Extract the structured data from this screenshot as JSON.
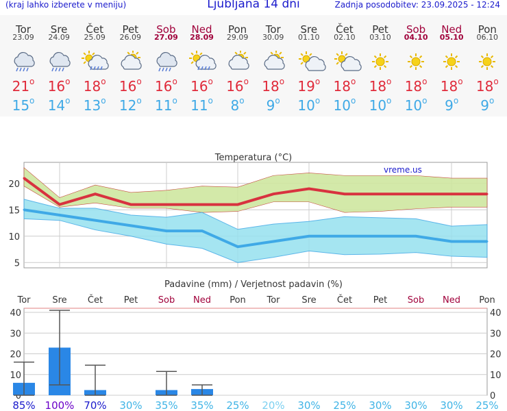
{
  "header": {
    "left": "(kraj lahko izberete v meniju)",
    "title": "Ljubljana 14 dni",
    "right": "Zadnja posodobitev: 23.09.2025 - 12:24"
  },
  "colors": {
    "max_line": "#d8323f",
    "min_line": "#3fa9e6",
    "max_band": "#cfe7a0",
    "min_band": "#96e1ef",
    "bar": "#2a87e6",
    "weekend": "#a0003a"
  },
  "days": [
    {
      "name": "Tor",
      "date": "23.09",
      "weekend": false,
      "icon": "rain-cloud-icon",
      "max": "21",
      "min": "15"
    },
    {
      "name": "Sre",
      "date": "24.09",
      "weekend": false,
      "icon": "rain-cloud-icon",
      "max": "16",
      "min": "14"
    },
    {
      "name": "Čet",
      "date": "25.09",
      "weekend": false,
      "icon": "sun-rain-cloud-icon",
      "max": "18",
      "min": "13"
    },
    {
      "name": "Pet",
      "date": "26.09",
      "weekend": false,
      "icon": "partly-cloudy-icon",
      "max": "16",
      "min": "12"
    },
    {
      "name": "Sob",
      "date": "27.09",
      "weekend": true,
      "icon": "rain-cloud-icon",
      "max": "16",
      "min": "11"
    },
    {
      "name": "Ned",
      "date": "28.09",
      "weekend": true,
      "icon": "sun-rain-cloud-icon",
      "max": "16",
      "min": "11"
    },
    {
      "name": "Pon",
      "date": "29.09",
      "weekend": false,
      "icon": "partly-cloudy-icon",
      "max": "16",
      "min": "8"
    },
    {
      "name": "Tor",
      "date": "30.09",
      "weekend": false,
      "icon": "partly-cloudy-icon",
      "max": "18",
      "min": "9"
    },
    {
      "name": "Sre",
      "date": "01.10",
      "weekend": false,
      "icon": "sun-cloud-icon",
      "max": "19",
      "min": "10"
    },
    {
      "name": "Čet",
      "date": "02.10",
      "weekend": false,
      "icon": "sun-cloud-icon",
      "max": "18",
      "min": "10"
    },
    {
      "name": "Pet",
      "date": "03.10",
      "weekend": false,
      "icon": "sun-icon",
      "max": "18",
      "min": "10"
    },
    {
      "name": "Sob",
      "date": "04.10",
      "weekend": true,
      "icon": "sun-icon",
      "max": "18",
      "min": "10"
    },
    {
      "name": "Ned",
      "date": "05.10",
      "weekend": true,
      "icon": "sun-icon",
      "max": "18",
      "min": "9"
    },
    {
      "name": "Pon",
      "date": "06.10",
      "weekend": false,
      "icon": "sun-icon",
      "max": "18",
      "min": "9"
    }
  ],
  "deg_symbol": "o",
  "chart_data": [
    {
      "type": "line",
      "title": "Temperatura (°C)",
      "watermark": "vreme.us",
      "categories": [
        "Tor",
        "Sre",
        "Čet",
        "Pet",
        "Sob",
        "Ned",
        "Pon",
        "Tor",
        "Sre",
        "Čet",
        "Pet",
        "Sob",
        "Ned",
        "Pon"
      ],
      "ylim": [
        4,
        24
      ],
      "yticks": [
        5,
        10,
        15,
        20
      ],
      "series": [
        {
          "values": [
            21,
            16,
            18,
            16,
            16,
            16,
            16,
            18,
            19,
            18,
            18,
            18,
            18,
            18
          ],
          "band_high": [
            23,
            17.3,
            19.7,
            18.3,
            18.7,
            19.5,
            19.3,
            21.5,
            22,
            21.5,
            21.5,
            21.5,
            21,
            21
          ],
          "band_low": [
            19.5,
            15.5,
            16.3,
            15.3,
            15.3,
            14.5,
            14.7,
            16.5,
            16.5,
            14.5,
            14.7,
            15.2,
            15.5,
            15.5
          ]
        },
        {
          "values": [
            15,
            14,
            13,
            12,
            11,
            11,
            8,
            9,
            10,
            10,
            10,
            10,
            9,
            9
          ],
          "band_high": [
            17,
            15.3,
            15.3,
            14,
            13.6,
            14.5,
            11.3,
            12.3,
            12.8,
            13.7,
            13.5,
            13.3,
            11.9,
            12.2
          ],
          "band_low": [
            13.3,
            13,
            11.2,
            10,
            8.5,
            7.7,
            5,
            6,
            7.2,
            6.5,
            6.6,
            6.9,
            6.2,
            6
          ]
        }
      ],
      "grid": true
    },
    {
      "type": "bar",
      "title": "Padavine (mm) / Verjetnost padavin (%)",
      "categories": [
        "Tor",
        "Sre",
        "Čet",
        "Pet",
        "Sob",
        "Ned",
        "Pon",
        "Tor",
        "Sre",
        "Čet",
        "Pet",
        "Sob",
        "Ned",
        "Pon"
      ],
      "ylim": [
        0,
        42
      ],
      "yticks": [
        0,
        10,
        20,
        30,
        40
      ],
      "values": [
        6,
        23,
        2.5,
        0,
        2.5,
        3,
        0,
        0,
        0,
        0,
        0,
        0,
        0,
        0
      ],
      "error_high": [
        16,
        41,
        14.5,
        0,
        11.5,
        5,
        0,
        0,
        0,
        0,
        0,
        0,
        0,
        0
      ],
      "error_low": [
        0,
        5,
        0,
        0,
        0,
        0,
        0,
        0,
        0,
        0,
        0,
        0,
        0,
        0
      ],
      "probability": [
        "85%",
        "100%",
        "70%",
        "30%",
        "35%",
        "35%",
        "25%",
        "20%",
        "30%",
        "25%",
        "30%",
        "30%",
        "30%",
        "25%"
      ],
      "probability_colors": [
        "#1a1acc",
        "#6a00c8",
        "#1a1acc",
        "#40b4e6",
        "#40b4e6",
        "#40b4e6",
        "#40b4e6",
        "#7dd0f0",
        "#40b4e6",
        "#40b4e6",
        "#40b4e6",
        "#40b4e6",
        "#40b4e6",
        "#40b4e6"
      ],
      "grid": true
    }
  ]
}
